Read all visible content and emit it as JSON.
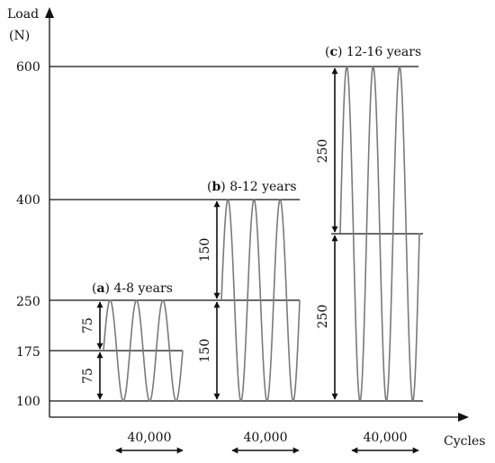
{
  "axes": {
    "y_title_line1": "Load",
    "y_title_line2": "(N)",
    "x_title": "Cycles",
    "y_ticks": [
      "600",
      "400",
      "250",
      "175",
      "100"
    ]
  },
  "panels": [
    {
      "letter": "a",
      "label": "4-8 years",
      "min_load": 100,
      "mean_load": 175,
      "max_load": 250,
      "amplitude_label": "75",
      "cycles_label": "40,000"
    },
    {
      "letter": "b",
      "label": "8-12 years",
      "min_load": 100,
      "mean_load": 250,
      "max_load": 400,
      "amplitude_label": "150",
      "cycles_label": "40,000"
    },
    {
      "letter": "c",
      "label": "12-16 years",
      "min_load": 100,
      "mean_load": 350,
      "max_load": 600,
      "amplitude_label": "250",
      "cycles_label": "40,000"
    }
  ]
}
